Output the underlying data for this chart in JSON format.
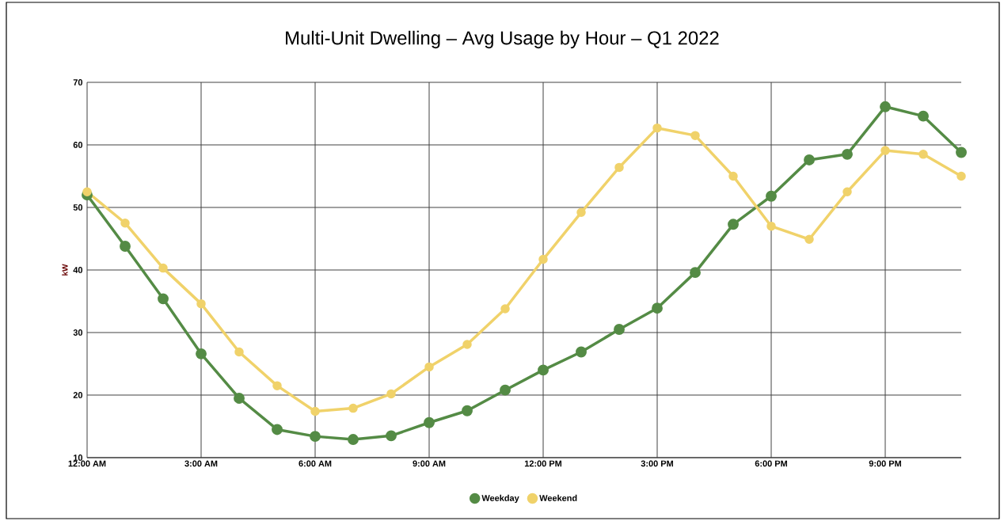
{
  "chart_data": {
    "type": "line",
    "title": "Multi-Unit Dwelling – Avg Usage by Hour – Q1 2022",
    "ylabel": "kW",
    "x": [
      0,
      1,
      2,
      3,
      4,
      5,
      6,
      7,
      8,
      9,
      10,
      11,
      12,
      13,
      14,
      15,
      16,
      17,
      18,
      19,
      20,
      21,
      22,
      23
    ],
    "series": [
      {
        "name": "Weekday",
        "color": "#548b45",
        "values": [
          52.0,
          43.8,
          35.4,
          26.6,
          19.5,
          14.5,
          13.4,
          12.9,
          13.5,
          15.6,
          17.5,
          20.8,
          24.0,
          26.9,
          30.5,
          33.9,
          39.6,
          47.3,
          51.8,
          57.6,
          58.5,
          66.1,
          64.6,
          58.8
        ]
      },
      {
        "name": "Weekend",
        "color": "#f0d26a",
        "values": [
          52.5,
          47.5,
          40.3,
          34.6,
          26.9,
          21.5,
          17.4,
          17.9,
          20.2,
          24.5,
          28.1,
          33.8,
          41.7,
          49.2,
          56.4,
          62.7,
          61.5,
          55.0,
          47.0,
          44.9,
          52.5,
          59.1,
          58.5,
          55.0
        ]
      }
    ],
    "xlim": [
      0,
      23
    ],
    "xticks": [
      {
        "value": 0,
        "label": "12:00 AM"
      },
      {
        "value": 3,
        "label": "3:00 AM"
      },
      {
        "value": 6,
        "label": "6:00 AM"
      },
      {
        "value": 9,
        "label": "9:00 AM"
      },
      {
        "value": 12,
        "label": "12:00 PM"
      },
      {
        "value": 15,
        "label": "3:00 PM"
      },
      {
        "value": 18,
        "label": "6:00 PM"
      },
      {
        "value": 21,
        "label": "9:00 PM"
      }
    ],
    "ylim": [
      10,
      70
    ],
    "yticks": [
      10,
      20,
      30,
      40,
      50,
      60,
      70
    ],
    "grid": true,
    "legend": "bottom",
    "marker": "circle",
    "line_style": "solid"
  }
}
